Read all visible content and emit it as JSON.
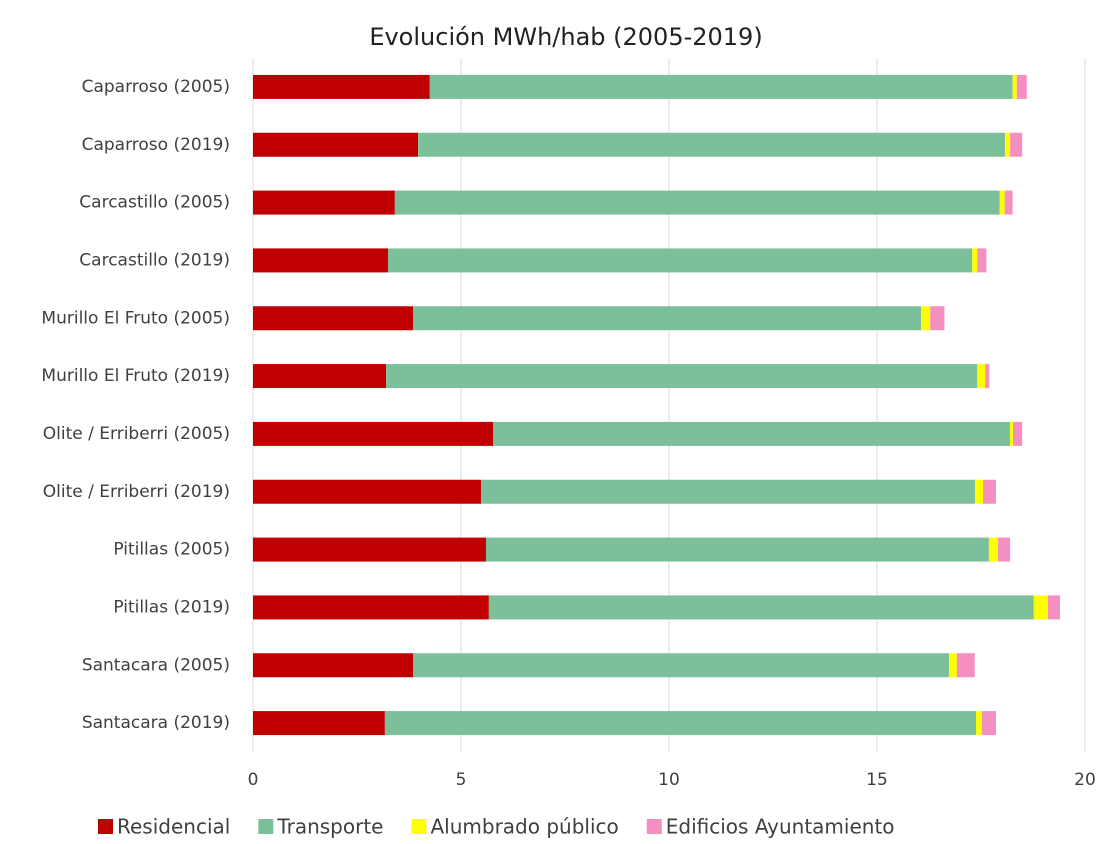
{
  "chart_data": {
    "type": "barh_stacked",
    "title": "Evolución MWh/hab (2005-2019)",
    "categories": [
      "Caparroso (2005)",
      "Caparroso (2019)",
      "Carcastillo (2005)",
      "Carcastillo (2019)",
      "Murillo El Fruto (2005)",
      "Murillo El Fruto (2019)",
      "Olite / Erriberri (2005)",
      "Olite / Erriberri (2019)",
      "Pitillas (2005)",
      "Pitillas (2019)",
      "Santacara (2005)",
      "Santacara (2019)"
    ],
    "series": [
      {
        "name": "Residencial",
        "color": "#c00000",
        "values": [
          4.25,
          3.97,
          3.41,
          3.25,
          3.85,
          3.2,
          5.77,
          5.48,
          5.6,
          5.67,
          3.85,
          3.17
        ]
      },
      {
        "name": "Transporte",
        "color": "#7bbf9b",
        "values": [
          14.01,
          14.11,
          14.54,
          14.04,
          12.21,
          14.21,
          12.43,
          11.88,
          12.09,
          13.1,
          12.88,
          14.21
        ]
      },
      {
        "name": "Alumbrado público",
        "color": "#ffff00",
        "values": [
          0.1,
          0.12,
          0.12,
          0.12,
          0.22,
          0.19,
          0.07,
          0.19,
          0.22,
          0.34,
          0.19,
          0.14
        ]
      },
      {
        "name": "Edificios Ayuntamiento",
        "color": "#f48fc1",
        "values": [
          0.24,
          0.29,
          0.19,
          0.22,
          0.34,
          0.1,
          0.22,
          0.31,
          0.29,
          0.29,
          0.43,
          0.34
        ]
      }
    ],
    "xlim": [
      0,
      20
    ],
    "xticks": [
      0,
      5,
      10,
      15,
      20
    ],
    "grid": true
  }
}
